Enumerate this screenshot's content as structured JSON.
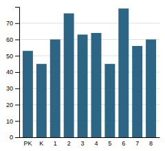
{
  "chart_data": {
    "type": "bar",
    "categories": [
      "PK",
      "K",
      "1",
      "2",
      "3",
      "4",
      "5",
      "6",
      "7",
      "8"
    ],
    "values": [
      53,
      45,
      60,
      76,
      63,
      64,
      45,
      79,
      56,
      60
    ],
    "color": "#2d6584",
    "ylim": [
      0,
      80
    ],
    "yticks": [
      0,
      10,
      20,
      30,
      40,
      50,
      60,
      70
    ],
    "grid": true
  }
}
